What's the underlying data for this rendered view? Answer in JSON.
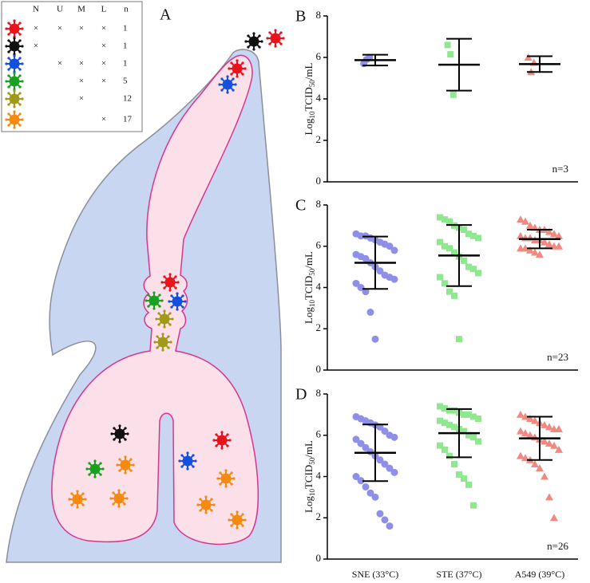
{
  "diagram": {
    "title": "A",
    "table": {
      "headers": [
        "N",
        "U",
        "M",
        "L",
        "n"
      ],
      "rows": [
        {
          "color": "#e8141c",
          "cells": [
            "×",
            "×",
            "×",
            "×"
          ],
          "n": "1"
        },
        {
          "color": "#111111",
          "cells": [
            "×",
            null,
            null,
            "×"
          ],
          "n": "1"
        },
        {
          "color": "#1450e0",
          "cells": [
            null,
            "×",
            "×",
            "×"
          ],
          "n": "1"
        },
        {
          "color": "#18a020",
          "cells": [
            null,
            null,
            "×",
            "×"
          ],
          "n": "5"
        },
        {
          "color": "#a09a18",
          "cells": [
            null,
            null,
            "×",
            null
          ],
          "n": "12"
        },
        {
          "color": "#f58a10",
          "cells": [
            null,
            null,
            null,
            "×"
          ],
          "n": "17"
        }
      ]
    }
  },
  "chart_data": [
    {
      "type": "scatter",
      "title": "B",
      "ylabel": [
        "Log",
        "10",
        "TCID",
        "50",
        "/mL"
      ],
      "annotation": "n=3",
      "ylim": [
        0,
        8
      ],
      "yticks": [
        0,
        2,
        4,
        6,
        8
      ],
      "series": [
        {
          "color": "#8f8fe8",
          "marker": "circle",
          "values": [
            5.7,
            5.9,
            6.0
          ],
          "mean": 5.87,
          "sd": 0.26
        },
        {
          "color": "#8fe88f",
          "marker": "square",
          "values": [
            6.6,
            6.15,
            4.2
          ],
          "mean": 5.65,
          "sd": 1.25
        },
        {
          "color": "#f08a80",
          "marker": "triangle",
          "values": [
            6.0,
            5.3,
            5.75
          ],
          "mean": 5.68,
          "sd": 0.38
        }
      ]
    },
    {
      "type": "scatter",
      "title": "C",
      "ylabel": [
        "Log",
        "10",
        "TCID",
        "50",
        "/mL"
      ],
      "annotation": "n=23",
      "ylim": [
        0,
        8
      ],
      "yticks": [
        0,
        2,
        4,
        6,
        8
      ],
      "series": [
        {
          "color": "#8f8fe8",
          "marker": "circle",
          "values": [
            6.6,
            6.5,
            6.5,
            6.4,
            6.3,
            6.2,
            6.1,
            6.0,
            5.8,
            5.6,
            5.5,
            5.4,
            5.2,
            5.0,
            4.8,
            4.6,
            4.5,
            4.4,
            4.2,
            4.0,
            3.8,
            2.8,
            1.5
          ],
          "mean": 5.2,
          "sd": 1.27
        },
        {
          "color": "#8fe88f",
          "marker": "square",
          "values": [
            7.4,
            7.3,
            7.2,
            7.0,
            6.9,
            6.8,
            6.6,
            6.5,
            6.4,
            6.2,
            6.0,
            5.9,
            5.7,
            5.5,
            5.3,
            5.0,
            4.9,
            4.7,
            4.5,
            4.2,
            3.8,
            3.6,
            1.5
          ],
          "mean": 5.55,
          "sd": 1.48
        },
        {
          "color": "#f08a80",
          "marker": "triangle",
          "values": [
            7.3,
            7.2,
            7.0,
            6.9,
            6.8,
            6.8,
            6.7,
            6.6,
            6.5,
            6.5,
            6.4,
            6.4,
            6.3,
            6.3,
            6.2,
            6.1,
            6.0,
            6.0,
            5.9,
            5.9,
            5.8,
            5.7,
            5.6
          ],
          "mean": 6.35,
          "sd": 0.45
        }
      ]
    },
    {
      "type": "scatter",
      "title": "D",
      "ylabel": [
        "Log",
        "10",
        "TCID",
        "50",
        "/mL"
      ],
      "annotation": "n=26",
      "categories": [
        "SNE (33°C)",
        "STE (37°C)",
        "A549 (39°C)"
      ],
      "ylim": [
        0,
        8
      ],
      "yticks": [
        0,
        2,
        4,
        6,
        8
      ],
      "series": [
        {
          "color": "#8f8fe8",
          "marker": "circle",
          "values": [
            6.9,
            6.8,
            6.7,
            6.6,
            6.5,
            6.4,
            6.2,
            6.0,
            5.9,
            5.8,
            5.6,
            5.4,
            5.2,
            5.0,
            4.8,
            4.6,
            4.4,
            4.2,
            4.0,
            3.8,
            3.5,
            3.2,
            3.0,
            2.2,
            1.9,
            1.6
          ],
          "mean": 5.15,
          "sd": 1.37
        },
        {
          "color": "#8fe88f",
          "marker": "square",
          "values": [
            7.4,
            7.3,
            7.2,
            7.2,
            7.1,
            7.0,
            7.0,
            6.9,
            6.8,
            6.7,
            6.6,
            6.5,
            6.4,
            6.3,
            6.2,
            6.0,
            5.9,
            5.7,
            5.5,
            5.3,
            5.0,
            4.6,
            4.1,
            3.9,
            3.6,
            2.6
          ],
          "mean": 6.1,
          "sd": 1.17
        },
        {
          "color": "#f08a80",
          "marker": "triangle",
          "values": [
            7.0,
            6.9,
            6.8,
            6.7,
            6.6,
            6.5,
            6.4,
            6.3,
            6.3,
            6.2,
            6.1,
            6.0,
            5.9,
            5.8,
            5.7,
            5.6,
            5.5,
            5.3,
            5.0,
            4.9,
            4.8,
            4.6,
            4.4,
            4.0,
            3.0,
            2.0
          ],
          "mean": 5.85,
          "sd": 1.05
        }
      ]
    }
  ]
}
